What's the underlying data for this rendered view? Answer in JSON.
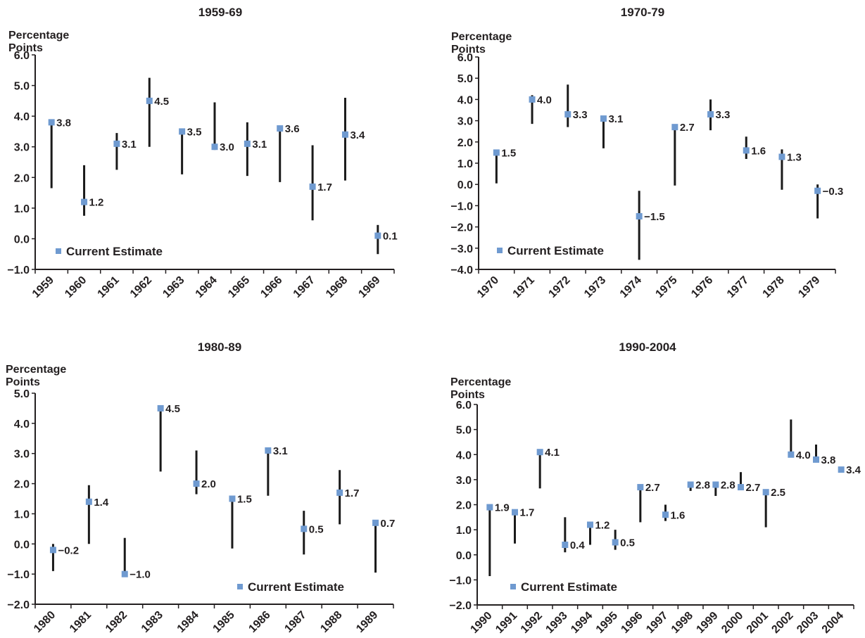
{
  "legend_label": "Current Estimate",
  "marker_color": "#6f9ad0",
  "range_color": "#1a1a1a",
  "chart_data": [
    {
      "type": "scatter",
      "title": "1959-69",
      "ylabel": "Percentage Points",
      "ylim": [
        -1,
        6
      ],
      "yticks": [
        -1,
        0,
        1,
        2,
        3,
        4,
        5,
        6
      ],
      "ytick_labels": [
        "−1.0",
        "0.0",
        "1.0",
        "2.0",
        "3.0",
        "4.0",
        "5.0",
        "6.0"
      ],
      "legend": "bottom-left",
      "series": [
        {
          "name": "Current Estimate",
          "points": [
            {
              "x": "1959",
              "y": 3.8,
              "label": "3.8",
              "low": 1.65,
              "high": 3.85
            },
            {
              "x": "1960",
              "y": 1.2,
              "label": "1.2",
              "low": 0.75,
              "high": 2.4
            },
            {
              "x": "1961",
              "y": 3.1,
              "label": "3.1",
              "low": 2.25,
              "high": 3.45
            },
            {
              "x": "1962",
              "y": 4.5,
              "label": "4.5",
              "low": 3.0,
              "high": 5.25
            },
            {
              "x": "1963",
              "y": 3.5,
              "label": "3.5",
              "low": 2.1,
              "high": 3.6
            },
            {
              "x": "1964",
              "y": 3.0,
              "label": "3.0",
              "low": 2.9,
              "high": 4.45
            },
            {
              "x": "1965",
              "y": 3.1,
              "label": "3.1",
              "low": 2.05,
              "high": 3.8
            },
            {
              "x": "1966",
              "y": 3.6,
              "label": "3.6",
              "low": 1.85,
              "high": 3.65
            },
            {
              "x": "1967",
              "y": 1.7,
              "label": "1.7",
              "low": 0.6,
              "high": 3.05
            },
            {
              "x": "1968",
              "y": 3.4,
              "label": "3.4",
              "low": 1.9,
              "high": 4.6
            },
            {
              "x": "1969",
              "y": 0.1,
              "label": "0.1",
              "low": -0.5,
              "high": 0.45
            }
          ]
        }
      ]
    },
    {
      "type": "scatter",
      "title": "1970-79",
      "ylabel": "Percentage Points",
      "ylim": [
        -4,
        6
      ],
      "yticks": [
        -4,
        -3,
        -2,
        -1,
        0,
        1,
        2,
        3,
        4,
        5,
        6
      ],
      "ytick_labels": [
        "−4.0",
        "−3.0",
        "−2.0",
        "−1.0",
        "0.0",
        "1.0",
        "2.0",
        "3.0",
        "4.0",
        "5.0",
        "6.0"
      ],
      "legend": "bottom-left",
      "series": [
        {
          "name": "Current Estimate",
          "points": [
            {
              "x": "1970",
              "y": 1.5,
              "label": "1.5",
              "low": 0.05,
              "high": 1.55
            },
            {
              "x": "1971",
              "y": 4.0,
              "label": "4.0",
              "low": 2.85,
              "high": 4.2
            },
            {
              "x": "1972",
              "y": 3.3,
              "label": "3.3",
              "low": 2.7,
              "high": 4.7
            },
            {
              "x": "1973",
              "y": 3.1,
              "label": "3.1",
              "low": 1.7,
              "high": 3.2
            },
            {
              "x": "1974",
              "y": -1.5,
              "label": "−1.5",
              "low": -3.55,
              "high": -0.3
            },
            {
              "x": "1975",
              "y": 2.7,
              "label": "2.7",
              "low": -0.05,
              "high": 2.8
            },
            {
              "x": "1976",
              "y": 3.3,
              "label": "3.3",
              "low": 2.55,
              "high": 4.0
            },
            {
              "x": "1977",
              "y": 1.6,
              "label": "1.6",
              "low": 1.2,
              "high": 2.25
            },
            {
              "x": "1978",
              "y": 1.3,
              "label": "1.3",
              "low": -0.25,
              "high": 1.65
            },
            {
              "x": "1979",
              "y": -0.3,
              "label": "−0.3",
              "low": -1.6,
              "high": 0.0
            }
          ]
        }
      ]
    },
    {
      "type": "scatter",
      "title": "1980-89",
      "ylabel": "Percentage Points",
      "ylim": [
        -2,
        5
      ],
      "yticks": [
        -2,
        -1,
        0,
        1,
        2,
        3,
        4,
        5
      ],
      "ytick_labels": [
        "−2.0",
        "−1.0",
        "0.0",
        "1.0",
        "2.0",
        "3.0",
        "4.0",
        "5.0"
      ],
      "legend": "bottom-right",
      "series": [
        {
          "name": "Current Estimate",
          "points": [
            {
              "x": "1980",
              "y": -0.2,
              "label": "−0.2",
              "low": -0.9,
              "high": 0.0
            },
            {
              "x": "1981",
              "y": 1.4,
              "label": "1.4",
              "low": 0.0,
              "high": 1.95
            },
            {
              "x": "1982",
              "y": -1.0,
              "label": "−1.0",
              "low": -1.0,
              "high": 0.2
            },
            {
              "x": "1983",
              "y": 4.5,
              "label": "4.5",
              "low": 2.4,
              "high": 4.6
            },
            {
              "x": "1984",
              "y": 2.0,
              "label": "2.0",
              "low": 1.65,
              "high": 3.1
            },
            {
              "x": "1985",
              "y": 1.5,
              "label": "1.5",
              "low": -0.15,
              "high": 1.6
            },
            {
              "x": "1986",
              "y": 3.1,
              "label": "3.1",
              "low": 1.6,
              "high": 3.2
            },
            {
              "x": "1987",
              "y": 0.5,
              "label": "0.5",
              "low": -0.35,
              "high": 1.1
            },
            {
              "x": "1988",
              "y": 1.7,
              "label": "1.7",
              "low": 0.65,
              "high": 2.45
            },
            {
              "x": "1989",
              "y": 0.7,
              "label": "0.7",
              "low": -0.95,
              "high": 0.75
            }
          ]
        }
      ]
    },
    {
      "type": "scatter",
      "title": "1990-2004",
      "ylabel": "Percentage Points",
      "ylim": [
        -2,
        6
      ],
      "yticks": [
        -2,
        -1,
        0,
        1,
        2,
        3,
        4,
        5,
        6
      ],
      "ytick_labels": [
        "−2.0",
        "−1.0",
        "0.0",
        "1.0",
        "2.0",
        "3.0",
        "4.0",
        "5.0",
        "6.0"
      ],
      "legend": "bottom-left",
      "series": [
        {
          "name": "Current Estimate",
          "points": [
            {
              "x": "1990",
              "y": 1.9,
              "label": "1.9",
              "low": -0.85,
              "high": 1.95
            },
            {
              "x": "1991",
              "y": 1.7,
              "label": "1.7",
              "low": 0.45,
              "high": 1.75
            },
            {
              "x": "1992",
              "y": 4.1,
              "label": "4.1",
              "low": 2.65,
              "high": 4.2
            },
            {
              "x": "1993",
              "y": 0.4,
              "label": "0.4",
              "low": 0.1,
              "high": 1.5
            },
            {
              "x": "1994",
              "y": 1.2,
              "label": "1.2",
              "low": 0.4,
              "high": 1.3
            },
            {
              "x": "1995",
              "y": 0.5,
              "label": "0.5",
              "low": 0.2,
              "high": 1.0
            },
            {
              "x": "1996",
              "y": 2.7,
              "label": "2.7",
              "low": 1.3,
              "high": 2.8
            },
            {
              "x": "1997",
              "y": 1.6,
              "label": "1.6",
              "low": 1.35,
              "high": 2.0
            },
            {
              "x": "1998",
              "y": 2.8,
              "label": "2.8",
              "low": 2.55,
              "high": 2.85
            },
            {
              "x": "1999",
              "y": 2.8,
              "label": "2.8",
              "low": 2.35,
              "high": 2.85
            },
            {
              "x": "2000",
              "y": 2.7,
              "label": "2.7",
              "low": 2.7,
              "high": 3.3
            },
            {
              "x": "2001",
              "y": 2.5,
              "label": "2.5",
              "low": 1.1,
              "high": 2.55
            },
            {
              "x": "2002",
              "y": 4.0,
              "label": "4.0",
              "low": 4.0,
              "high": 5.4
            },
            {
              "x": "2003",
              "y": 3.8,
              "label": "3.8",
              "low": 3.8,
              "high": 4.4
            },
            {
              "x": "2004",
              "y": 3.4,
              "label": "3.4",
              "low": 3.35,
              "high": 3.45
            }
          ]
        }
      ]
    }
  ]
}
